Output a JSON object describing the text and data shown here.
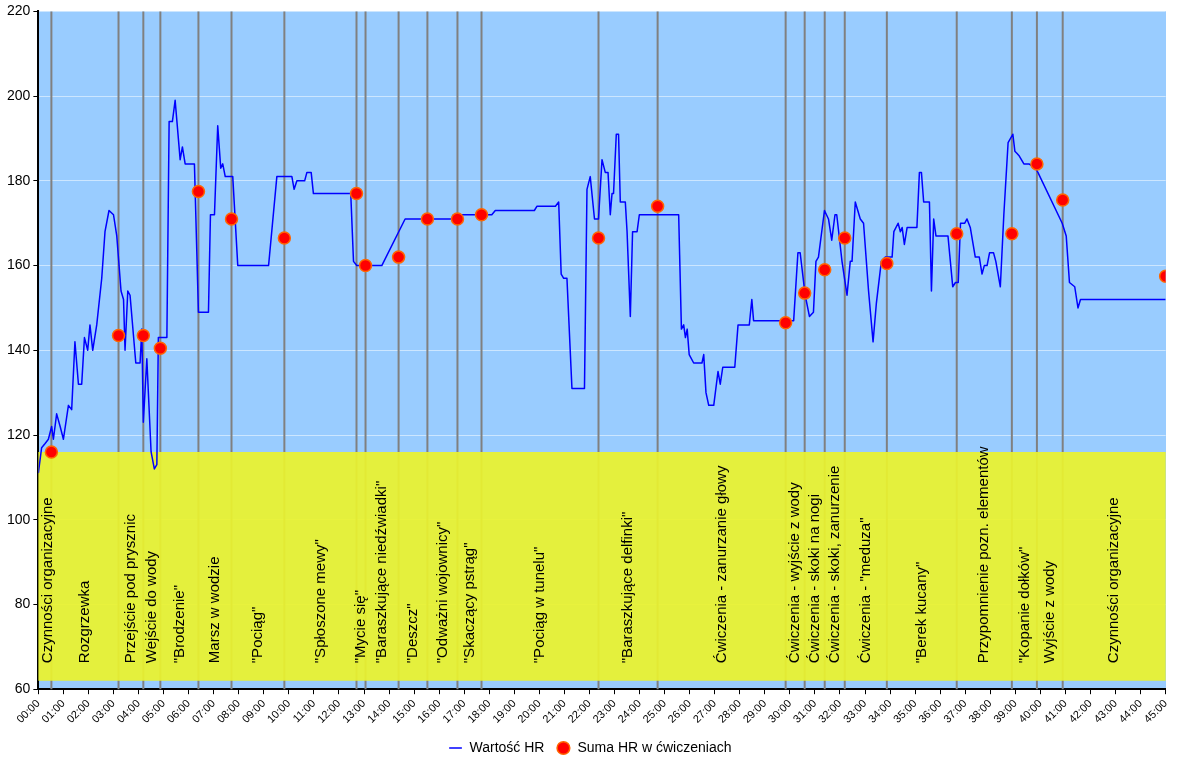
{
  "chart_data": {
    "type": "line",
    "xlim": [
      0,
      45
    ],
    "ylim": [
      60,
      220
    ],
    "xticks": [
      {
        "value": 0,
        "label": "00:00"
      },
      {
        "value": 1,
        "label": "01:00"
      },
      {
        "value": 2,
        "label": "02:00"
      },
      {
        "value": 3,
        "label": "03:00"
      },
      {
        "value": 4,
        "label": "04:00"
      },
      {
        "value": 5,
        "label": "05:00"
      },
      {
        "value": 6,
        "label": "06:00"
      },
      {
        "value": 7,
        "label": "07:00"
      },
      {
        "value": 8,
        "label": "08:00"
      },
      {
        "value": 9,
        "label": "09:00"
      },
      {
        "value": 10,
        "label": "10:00"
      },
      {
        "value": 11,
        "label": "11:00"
      },
      {
        "value": 12,
        "label": "12:00"
      },
      {
        "value": 13,
        "label": "13:00"
      },
      {
        "value": 14,
        "label": "14:00"
      },
      {
        "value": 15,
        "label": "15:00"
      },
      {
        "value": 16,
        "label": "16:00"
      },
      {
        "value": 17,
        "label": "17:00"
      },
      {
        "value": 18,
        "label": "18:00"
      },
      {
        "value": 19,
        "label": "19:00"
      },
      {
        "value": 20,
        "label": "20:00"
      },
      {
        "value": 21,
        "label": "21:00"
      },
      {
        "value": 22,
        "label": "22:00"
      },
      {
        "value": 23,
        "label": "23:00"
      },
      {
        "value": 24,
        "label": "24:00"
      },
      {
        "value": 25,
        "label": "25:00"
      },
      {
        "value": 26,
        "label": "26:00"
      },
      {
        "value": 27,
        "label": "27:00"
      },
      {
        "value": 28,
        "label": "28:00"
      },
      {
        "value": 29,
        "label": "29:00"
      },
      {
        "value": 30,
        "label": "30:00"
      },
      {
        "value": 31,
        "label": "31:00"
      },
      {
        "value": 32,
        "label": "32:00"
      },
      {
        "value": 33,
        "label": "33:00"
      },
      {
        "value": 34,
        "label": "34:00"
      },
      {
        "value": 35,
        "label": "35:00"
      },
      {
        "value": 36,
        "label": "36:00"
      },
      {
        "value": 37,
        "label": "37:00"
      },
      {
        "value": 38,
        "label": "38:00"
      },
      {
        "value": 39,
        "label": "39:00"
      },
      {
        "value": 40,
        "label": "40:00"
      },
      {
        "value": 41,
        "label": "41:00"
      },
      {
        "value": 42,
        "label": "42:00"
      },
      {
        "value": 43,
        "label": "43:00"
      },
      {
        "value": 44,
        "label": "44:00"
      },
      {
        "value": 45,
        "label": "45:00"
      }
    ],
    "yticks": [
      60,
      80,
      100,
      120,
      140,
      160,
      180,
      200,
      220
    ],
    "grid": "y",
    "series": [
      {
        "name": "Wartość HR",
        "color": "#0000ff",
        "marker": "none",
        "x": [
          0,
          0.13,
          0.27,
          0.4,
          0.53,
          0.6,
          0.73,
          0.87,
          1.0,
          1.2,
          1.33,
          1.46,
          1.6,
          1.73,
          1.84,
          1.97,
          2.06,
          2.17,
          2.33,
          2.53,
          2.66,
          2.82,
          3.0,
          3.13,
          3.3,
          3.4,
          3.46,
          3.57,
          3.66,
          3.89,
          4.06,
          4.13,
          4.19,
          4.33,
          4.5,
          4.63,
          4.73,
          4.79,
          5.13,
          5.22,
          5.35,
          5.46,
          5.66,
          5.75,
          5.86,
          6.23,
          6.39,
          6.79,
          6.87,
          7.03,
          7.16,
          7.28,
          7.36,
          7.46,
          7.76,
          7.96,
          9.19,
          9.52,
          10.12,
          10.21,
          10.32,
          10.63,
          10.72,
          10.89,
          10.98,
          11.98,
          12.47,
          12.58,
          12.71,
          13.71,
          14.64,
          16.5,
          16.57,
          18.1,
          18.24,
          19.8,
          19.9,
          20.64,
          20.77,
          20.87,
          20.97,
          21.1,
          21.3,
          21.8,
          21.9,
          22.03,
          22.2,
          22.36,
          22.5,
          22.63,
          22.74,
          22.83,
          22.9,
          22.96,
          23.07,
          23.16,
          23.23,
          23.43,
          23.5,
          23.63,
          23.72,
          23.9,
          23.99,
          25.56,
          25.67,
          25.76,
          25.83,
          25.9,
          25.98,
          26.16,
          26.49,
          26.56,
          26.65,
          26.76,
          26.96,
          27.13,
          27.22,
          27.32,
          27.8,
          27.93,
          28.38,
          28.48,
          28.55,
          30.15,
          30.32,
          30.41,
          30.61,
          30.78,
          30.94,
          31.04,
          31.14,
          31.38,
          31.54,
          31.67,
          31.8,
          31.87,
          32.08,
          32.28,
          32.41,
          32.48,
          32.61,
          32.81,
          32.94,
          33.14,
          33.32,
          33.45,
          33.65,
          33.81,
          34.08,
          34.15,
          34.32,
          34.41,
          34.48,
          34.57,
          34.68,
          35.07,
          35.17,
          35.25,
          35.34,
          35.57,
          35.65,
          35.74,
          35.83,
          36.31,
          36.5,
          36.61,
          36.72,
          36.81,
          36.98,
          37.07,
          37.2,
          37.4,
          37.56,
          37.67,
          37.76,
          37.87,
          37.97,
          38.13,
          38.22,
          38.4,
          38.54,
          38.71,
          38.9,
          38.98,
          39.14,
          39.34,
          39.54,
          39.8,
          39.9,
          40.87,
          41.03,
          41.16,
          41.37,
          41.5,
          41.6,
          45
        ],
        "values": [
          111,
          117,
          118,
          119,
          122,
          119,
          125,
          122,
          119,
          127,
          126,
          142,
          132,
          132,
          143,
          140,
          146,
          140,
          146,
          157,
          168,
          173,
          172,
          167,
          154,
          152,
          140,
          154,
          153,
          137,
          137,
          145,
          123,
          138,
          116,
          112,
          113,
          143,
          143,
          194,
          194,
          199,
          185,
          188,
          184,
          184,
          149,
          149,
          172,
          172,
          193,
          183,
          184,
          181,
          181,
          160,
          160,
          181,
          181,
          178,
          180,
          180,
          182,
          182,
          177,
          177,
          177,
          161,
          160,
          160,
          171,
          171,
          172,
          172,
          173,
          173,
          174,
          174,
          175,
          158,
          157,
          157,
          131,
          131,
          178,
          181,
          171,
          171,
          185,
          182,
          182,
          172,
          177,
          177,
          191,
          191,
          175,
          175,
          168,
          148,
          168,
          168,
          172,
          172,
          145,
          146,
          143,
          145,
          139,
          137,
          137,
          139,
          130,
          127,
          127,
          135,
          132,
          136,
          136,
          146,
          146,
          152,
          147,
          147,
          163,
          163,
          153,
          148,
          149,
          161,
          162,
          173,
          171,
          166,
          172,
          172,
          161,
          153,
          161,
          161,
          175,
          171,
          170,
          154,
          142,
          151,
          161,
          162,
          162,
          168,
          170,
          168,
          169,
          165,
          169,
          169,
          182,
          182,
          175,
          175,
          154,
          171,
          167,
          167,
          155,
          156,
          156,
          170,
          170,
          171,
          169,
          162,
          162,
          158,
          160,
          160,
          163,
          163,
          161,
          155,
          172,
          189,
          191,
          187,
          186,
          184,
          184,
          183,
          182,
          170,
          167,
          156,
          155,
          150,
          152,
          152
        ]
      },
      {
        "name": "Suma HR w ćwiczeniach",
        "color": "#ff0000",
        "type": "scatter",
        "marker": "circle",
        "x": [
          0.52,
          3.2,
          4.19,
          4.87,
          6.39,
          7.71,
          9.82,
          12.7,
          13.06,
          14.38,
          15.53,
          16.73,
          17.69,
          22.36,
          24.72,
          29.83,
          30.59,
          31.39,
          32.19,
          33.87,
          36.66,
          38.86,
          39.86,
          40.89,
          45
        ],
        "values": [
          116,
          143.5,
          143.5,
          140.5,
          177.5,
          171,
          166.5,
          177,
          160,
          162,
          171,
          171,
          172,
          166.5,
          174,
          146.5,
          153.5,
          159,
          166.5,
          160.5,
          167.5,
          167.5,
          184,
          175.5,
          157.5
        ]
      }
    ],
    "bands": [
      {
        "axis": "y",
        "from": 62,
        "to": 116,
        "color": "#eaf22e"
      }
    ],
    "annotations": [
      "Czynności organizacyjne",
      "Rozgrzewka",
      "Przejście pod prysznic",
      "Wejście do wody",
      "\"Brodzenie\"",
      "Marsz w wodzie",
      "\"Pociąg\"",
      "\"Spłoszone mewy\"",
      "\"Mycie się\"",
      "\"Baraszkujące niedźwiadki\"",
      "\"Deszcz\"",
      "\"Odważni wojownicy\"",
      "\"Skaczący pstrąg\"",
      "\"Pociąg w tunelu\"",
      "\"Baraszkujące delfinki\"",
      "Ćwiczenia - zanurzanie głowy",
      "Ćwiczenia - wyjście z wody",
      "Ćwiczenia - skoki na nogi",
      "Ćwiczenia - skoki, zanurzenie",
      "Ćwiczenia - \"meduza\"",
      "\"Berek kucany\"",
      "Przypomnienie pozn. elementów",
      "\"Kopanie dołków\"",
      "Wyjście z wody",
      "Czynności organizacyjne"
    ],
    "ref_lines": [
      {
        "axis": "x",
        "value": 0.52,
        "color": "#808080"
      },
      {
        "axis": "x",
        "value": 3.2,
        "color": "#808080"
      },
      {
        "axis": "x",
        "value": 4.19,
        "color": "#808080"
      },
      {
        "axis": "x",
        "value": 4.87,
        "color": "#808080"
      },
      {
        "axis": "x",
        "value": 6.39,
        "color": "#808080"
      },
      {
        "axis": "x",
        "value": 7.71,
        "color": "#808080"
      },
      {
        "axis": "x",
        "value": 9.82,
        "color": "#808080"
      },
      {
        "axis": "x",
        "value": 12.7,
        "color": "#808080"
      },
      {
        "axis": "x",
        "value": 13.06,
        "color": "#808080"
      },
      {
        "axis": "x",
        "value": 14.38,
        "color": "#808080"
      },
      {
        "axis": "x",
        "value": 15.53,
        "color": "#808080"
      },
      {
        "axis": "x",
        "value": 16.73,
        "color": "#808080"
      },
      {
        "axis": "x",
        "value": 17.69,
        "color": "#808080"
      },
      {
        "axis": "x",
        "value": 22.36,
        "color": "#808080"
      },
      {
        "axis": "x",
        "value": 24.72,
        "color": "#808080"
      },
      {
        "axis": "x",
        "value": 29.83,
        "color": "#808080"
      },
      {
        "axis": "x",
        "value": 30.59,
        "color": "#808080"
      },
      {
        "axis": "x",
        "value": 31.39,
        "color": "#808080"
      },
      {
        "axis": "x",
        "value": 32.19,
        "color": "#808080"
      },
      {
        "axis": "x",
        "value": 33.87,
        "color": "#808080"
      },
      {
        "axis": "x",
        "value": 36.66,
        "color": "#808080"
      },
      {
        "axis": "x",
        "value": 38.86,
        "color": "#808080"
      },
      {
        "axis": "x",
        "value": 39.86,
        "color": "#808080"
      },
      {
        "axis": "x",
        "value": 40.89,
        "color": "#808080"
      }
    ],
    "legend": "bottom"
  }
}
